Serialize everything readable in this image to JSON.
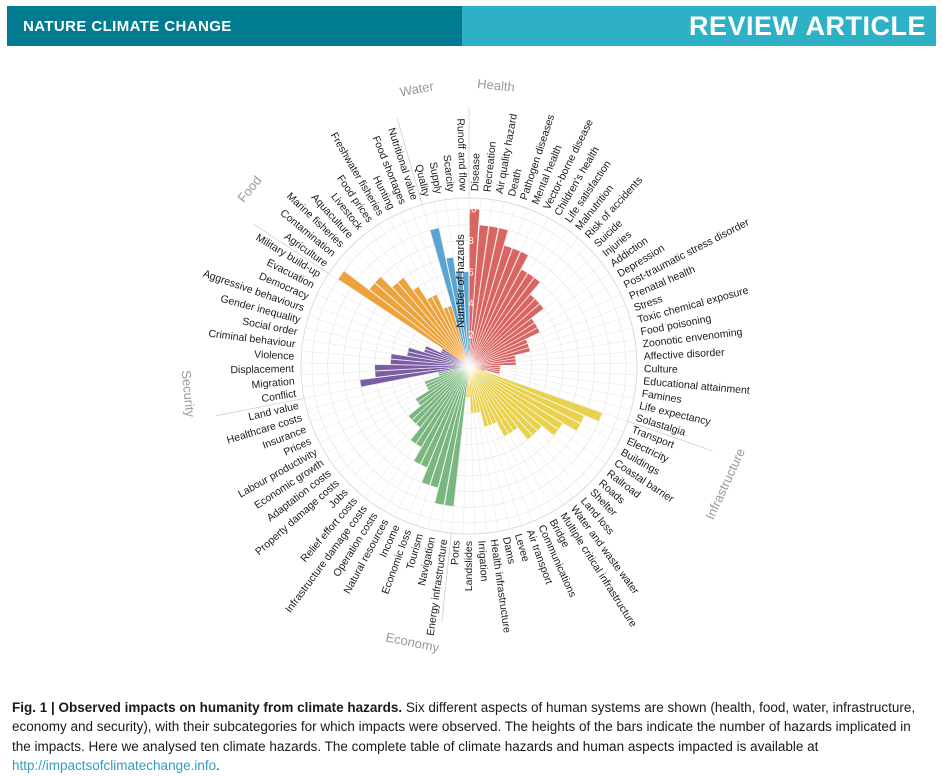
{
  "header": {
    "journal": "NATURE CLIMATE CHANGE",
    "article_type": "REVIEW ARTICLE",
    "bar_color": "#2eb1c6",
    "journal_box_color": "#007b8f"
  },
  "caption": {
    "fig_label": "Fig. 1 |",
    "bold_title": "Observed impacts on humanity from climate hazards.",
    "body": "Six different aspects of human systems are shown (health, food, water, infrastructure, economy and security), with their subcategories for which impacts were observed. The heights of the bars indicate the number of hazards implicated in the impacts. Here we analysed ten climate hazards. The complete table of climate hazards and human aspects impacted is available at",
    "link_text": "http://impactsofclimatechange.info",
    "suffix": "."
  },
  "chart_data": {
    "type": "bar",
    "subtype": "radial-bar",
    "direction": "clockwise-from-top",
    "axis": {
      "label": "Number of hazards",
      "ticks": [
        2,
        4,
        6,
        8,
        10
      ],
      "min": 0,
      "max": 10
    },
    "grid": {
      "rings": 10,
      "ring_color": "#e4e4e4",
      "spoke_color": "#e6e6e6",
      "outer_ring_color": "#d4d4d4"
    },
    "sector_label_color": "#9a9a9a",
    "category_label_color": "#1b1b1b",
    "tick_label_color": "#ffffff",
    "sectors": [
      {
        "name": "Health",
        "color": "#d96562",
        "items": [
          [
            "Disease",
            10
          ],
          [
            "Recreation",
            9
          ],
          [
            "Air quality hazard",
            9
          ],
          [
            "Death",
            9
          ],
          [
            "Pathogen diseases",
            8
          ],
          [
            "Mental health",
            8
          ],
          [
            "Vector-borne disease",
            8
          ],
          [
            "Children's health",
            7
          ],
          [
            "Life satisfaction",
            7
          ],
          [
            "Malnutrition",
            7
          ],
          [
            "Risk of accidents",
            6
          ],
          [
            "Suicide",
            6
          ],
          [
            "Injuries",
            6
          ],
          [
            "Addiction",
            5
          ],
          [
            "Depression",
            5
          ],
          [
            "Post-traumatic stress disorder",
            5
          ],
          [
            "Prenatal health",
            4
          ],
          [
            "Stress",
            4
          ],
          [
            "Toxic chemical exposure",
            4
          ],
          [
            "Food poisoning",
            3
          ],
          [
            "Zoonotic envenoming",
            3
          ],
          [
            "Affective disorder",
            3
          ],
          [
            "Culture",
            2
          ],
          [
            "Educational attainment",
            2
          ],
          [
            "Famines",
            2
          ],
          [
            "Life expectancy",
            2
          ],
          [
            "Solastalgia",
            1
          ]
        ]
      },
      {
        "name": "Infrastructure",
        "color": "#e8d24b",
        "items": [
          [
            "Transport",
            9
          ],
          [
            "Electricity",
            8
          ],
          [
            "Buildings",
            8
          ],
          [
            "Coastal barrier",
            7
          ],
          [
            "Railroad",
            7
          ],
          [
            "Roads",
            6
          ],
          [
            "Shelter",
            6
          ],
          [
            "Land loss",
            6
          ],
          [
            "Water and waste water",
            5
          ],
          [
            "Multiple critical infrastructure",
            5
          ],
          [
            "Bridge",
            5
          ],
          [
            "Communications",
            4
          ],
          [
            "Air transport",
            4
          ],
          [
            "Levee",
            4
          ],
          [
            "Dams",
            3
          ],
          [
            "Health infrastructure",
            3
          ],
          [
            "Irrigation",
            3
          ],
          [
            "Landslides",
            2
          ],
          [
            "Ports",
            2
          ]
        ]
      },
      {
        "name": "Economy",
        "color": "#7ab67f",
        "items": [
          [
            "Energy infrastructure",
            9
          ],
          [
            "Navigation",
            9
          ],
          [
            "Tourism",
            8
          ],
          [
            "Economic loss",
            8
          ],
          [
            "Income",
            7
          ],
          [
            "Natural resources",
            7
          ],
          [
            "Operation costs",
            6
          ],
          [
            "Infrastructure damage costs",
            6
          ],
          [
            "Relief effort costs",
            5
          ],
          [
            "Jobs",
            5
          ],
          [
            "Property damage costs",
            5
          ],
          [
            "Adaptation costs",
            4
          ],
          [
            "Economic growth",
            4
          ],
          [
            "Labour productivity",
            3
          ],
          [
            "Prices",
            3
          ],
          [
            "Insurance",
            3
          ],
          [
            "Healthcare costs",
            2
          ],
          [
            "Land value",
            2
          ]
        ]
      },
      {
        "name": "Security",
        "color": "#7a5da5",
        "items": [
          [
            "Conflict",
            7
          ],
          [
            "Migration",
            6
          ],
          [
            "Displacement",
            6
          ],
          [
            "Violence",
            5
          ],
          [
            "Criminal behaviour",
            5
          ],
          [
            "Social order",
            4
          ],
          [
            "Gender inequality",
            4
          ],
          [
            "Aggressive behaviours",
            3
          ],
          [
            "Democracy",
            3
          ],
          [
            "Evacuation",
            2
          ],
          [
            "Military build-up",
            2
          ]
        ]
      },
      {
        "name": "Food",
        "color": "#eda33b",
        "items": [
          [
            "Agriculture",
            10
          ],
          [
            "Contamination",
            8
          ],
          [
            "Marine fisheries",
            8
          ],
          [
            "Aquaculture",
            7
          ],
          [
            "Livestock",
            7
          ],
          [
            "Food prices",
            6
          ],
          [
            "Freshwater fisheries",
            5
          ],
          [
            "Hunting",
            5
          ],
          [
            "Food shortages",
            4
          ],
          [
            "Nutritional value",
            4
          ]
        ]
      },
      {
        "name": "Water",
        "color": "#5ba3d0",
        "items": [
          [
            "Quality",
            9
          ],
          [
            "Supply",
            7
          ],
          [
            "Scarcity",
            6
          ],
          [
            "Runoff and flow",
            6
          ]
        ]
      }
    ]
  }
}
